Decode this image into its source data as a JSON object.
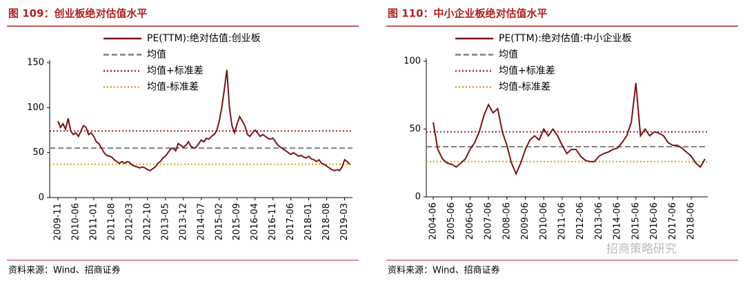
{
  "chart_data": [
    {
      "type": "line",
      "title": "图 109：创业板绝对估值水平",
      "source": "资料来源：Wind、招商证券",
      "ylim": [
        0,
        150
      ],
      "yticks": [
        0,
        50,
        100,
        150
      ],
      "categories": [
        "2009-11",
        null,
        null,
        null,
        null,
        null,
        null,
        "2010-06",
        null,
        null,
        null,
        null,
        null,
        null,
        "2011-01",
        null,
        null,
        null,
        null,
        null,
        null,
        "2011-08",
        null,
        null,
        null,
        null,
        null,
        null,
        "2012-03",
        null,
        null,
        null,
        null,
        null,
        null,
        "2012-10",
        null,
        null,
        null,
        null,
        null,
        null,
        "2013-05",
        null,
        null,
        null,
        null,
        null,
        null,
        "2013-12",
        null,
        null,
        null,
        null,
        null,
        null,
        "2014-07",
        null,
        null,
        null,
        null,
        null,
        null,
        "2015-02",
        null,
        null,
        null,
        null,
        null,
        null,
        "2015-09",
        null,
        null,
        null,
        null,
        null,
        null,
        "2016-04",
        null,
        null,
        null,
        null,
        null,
        null,
        "2016-11",
        null,
        null,
        null,
        null,
        null,
        null,
        "2017-06",
        null,
        null,
        null,
        null,
        null,
        null,
        "2018-01",
        null,
        null,
        null,
        null,
        null,
        null,
        "2018-08",
        null,
        null,
        null,
        null,
        null,
        null,
        "2019-03",
        null,
        null
      ],
      "series": [
        {
          "name": "PE(TTM):绝对估值:创业板",
          "color": "#7b1113",
          "values": [
            85,
            78,
            82,
            76,
            88,
            74,
            70,
            72,
            68,
            74,
            80,
            78,
            70,
            72,
            68,
            62,
            60,
            55,
            50,
            47,
            46,
            45,
            42,
            40,
            38,
            40,
            38,
            40,
            39,
            36,
            35,
            34,
            33,
            34,
            33,
            31,
            30,
            32,
            34,
            38,
            40,
            44,
            46,
            50,
            54,
            55,
            52,
            60,
            58,
            56,
            58,
            62,
            57,
            55,
            56,
            60,
            64,
            62,
            66,
            65,
            68,
            70,
            74,
            85,
            100,
            120,
            142,
            100,
            80,
            72,
            82,
            90,
            85,
            80,
            70,
            68,
            72,
            75,
            72,
            68,
            70,
            68,
            66,
            65,
            66,
            62,
            58,
            56,
            54,
            52,
            50,
            48,
            50,
            48,
            46,
            47,
            45,
            44,
            46,
            43,
            42,
            40,
            42,
            38,
            37,
            35,
            33,
            31,
            30,
            31,
            30,
            34,
            42,
            40,
            37
          ]
        }
      ],
      "reference_lines": [
        {
          "name": "均值",
          "color": "#7f7f7f",
          "style": "dashed",
          "value": 55
        },
        {
          "name": "均值+标准差",
          "color": "#a51c1c",
          "style": "dotted",
          "value": 74
        },
        {
          "name": "均值-标准差",
          "color": "#d4a017",
          "style": "dotted",
          "value": 37
        }
      ]
    },
    {
      "type": "line",
      "title": "图 110：中小企业板绝对估值水平",
      "source": "资料来源：Wind、招商证券",
      "ylim": [
        0,
        100
      ],
      "yticks": [
        0,
        50,
        100
      ],
      "categories": [
        "2004-06",
        null,
        null,
        null,
        "2005-06",
        null,
        null,
        null,
        "2006-06",
        null,
        null,
        null,
        "2007-06",
        null,
        null,
        null,
        "2008-06",
        null,
        null,
        null,
        "2009-06",
        null,
        null,
        null,
        "2010-06",
        null,
        null,
        null,
        "2011-06",
        null,
        null,
        null,
        "2012-06",
        null,
        null,
        null,
        "2013-06",
        null,
        null,
        null,
        "2014-06",
        null,
        null,
        null,
        "2015-06",
        null,
        null,
        null,
        "2016-06",
        null,
        null,
        null,
        "2017-06",
        null,
        null,
        null,
        "2018-06",
        null,
        null,
        null
      ],
      "series": [
        {
          "name": "PE(TTM):绝对估值:中小企业板",
          "color": "#7b1113",
          "values": [
            55,
            35,
            28,
            25,
            24,
            22,
            25,
            28,
            35,
            40,
            48,
            60,
            68,
            62,
            65,
            48,
            38,
            25,
            17,
            25,
            35,
            42,
            45,
            42,
            50,
            45,
            50,
            45,
            38,
            32,
            35,
            35,
            30,
            27,
            26,
            26,
            30,
            32,
            33,
            35,
            36,
            40,
            45,
            55,
            84,
            45,
            50,
            45,
            48,
            47,
            45,
            40,
            38,
            38,
            36,
            33,
            30,
            25,
            22,
            28
          ]
        }
      ],
      "reference_lines": [
        {
          "name": "均值",
          "color": "#7f7f7f",
          "style": "dashed",
          "value": 37
        },
        {
          "name": "均值+标准差",
          "color": "#a51c1c",
          "style": "dotted",
          "value": 48
        },
        {
          "name": "均值-标准差",
          "color": "#d4a017",
          "style": "dotted",
          "value": 26
        }
      ]
    }
  ],
  "watermark": "招商策略研究"
}
